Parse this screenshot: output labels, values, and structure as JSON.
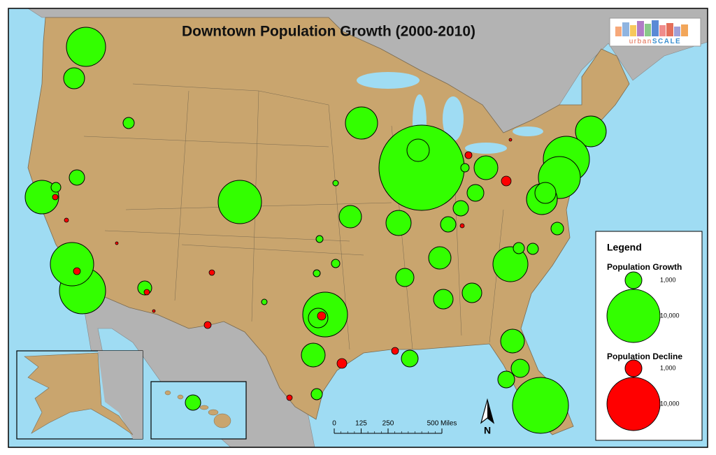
{
  "title": "Downtown Population Growth (2000-2010)",
  "logo": {
    "prefix": "urban",
    "suffix": "SCALE"
  },
  "legend": {
    "title": "Legend",
    "groups": [
      {
        "name": "Population Growth",
        "color": "#33ff00",
        "items": [
          {
            "value": 1000,
            "label": "1,000"
          },
          {
            "value": 10000,
            "label": "10,000"
          }
        ]
      },
      {
        "name": "Population Decline",
        "color": "#ff0000",
        "items": [
          {
            "value": 1000,
            "label": "1,000"
          },
          {
            "value": 10000,
            "label": "10,000"
          }
        ]
      }
    ]
  },
  "scale_bar": {
    "ticks": [
      0,
      125,
      250,
      {
        "value": 500,
        "label": "500 Miles"
      }
    ]
  },
  "north_arrow": "N"
}
